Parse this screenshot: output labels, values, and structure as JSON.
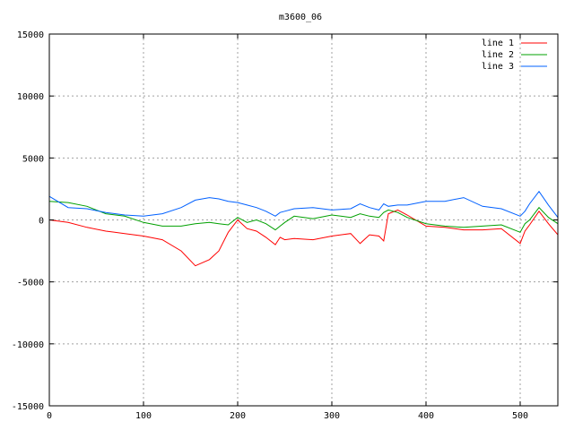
{
  "chart_data": {
    "type": "line",
    "title": "m3600_06",
    "xlabel": "",
    "ylabel": "",
    "xlim": [
      0,
      540
    ],
    "ylim": [
      -15000,
      15000
    ],
    "x_ticks": [
      0,
      100,
      200,
      300,
      400,
      500
    ],
    "y_ticks": [
      -15000,
      -10000,
      -5000,
      0,
      5000,
      10000,
      15000
    ],
    "grid": true,
    "legend_position": "top-right",
    "x": [
      0,
      20,
      40,
      60,
      80,
      100,
      120,
      140,
      155,
      170,
      180,
      190,
      200,
      210,
      220,
      230,
      240,
      245,
      250,
      260,
      280,
      300,
      320,
      330,
      340,
      350,
      355,
      360,
      370,
      380,
      400,
      420,
      440,
      460,
      480,
      500,
      505,
      510,
      520,
      530,
      540
    ],
    "series": [
      {
        "name": "line 1",
        "color": "#ff0000",
        "values": [
          0,
          -200,
          -600,
          -900,
          -1100,
          -1300,
          -1600,
          -2500,
          -3700,
          -3200,
          -2500,
          -1000,
          0,
          -700,
          -900,
          -1400,
          -2000,
          -1400,
          -1600,
          -1500,
          -1600,
          -1300,
          -1100,
          -1900,
          -1200,
          -1300,
          -1700,
          500,
          800,
          400,
          -500,
          -600,
          -800,
          -800,
          -700,
          -1900,
          -900,
          -400,
          700,
          -300,
          -1200
        ]
      },
      {
        "name": "line 2",
        "color": "#00a000",
        "values": [
          1500,
          1400,
          1100,
          500,
          300,
          -200,
          -500,
          -500,
          -300,
          -200,
          -300,
          -400,
          200,
          -200,
          0,
          -300,
          -800,
          -500,
          -200,
          300,
          100,
          400,
          200,
          500,
          300,
          200,
          600,
          800,
          600,
          200,
          -300,
          -500,
          -600,
          -500,
          -400,
          -1000,
          -300,
          0,
          1000,
          200,
          -300
        ]
      },
      {
        "name": "line 3",
        "color": "#0060ff",
        "values": [
          1900,
          1000,
          900,
          600,
          400,
          300,
          500,
          1000,
          1600,
          1800,
          1700,
          1500,
          1400,
          1200,
          1000,
          700,
          300,
          600,
          700,
          900,
          1000,
          800,
          900,
          1300,
          1000,
          800,
          1300,
          1100,
          1200,
          1200,
          1500,
          1500,
          1800,
          1100,
          900,
          300,
          700,
          1300,
          2300,
          1200,
          200
        ]
      }
    ]
  }
}
